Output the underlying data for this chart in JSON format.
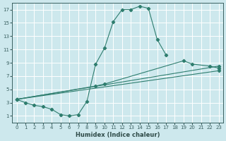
{
  "bg_color": "#cde8ed",
  "grid_color": "#ffffff",
  "line_color": "#2e7d6e",
  "xlabel": "Humidex (Indice chaleur)",
  "xlim": [
    -0.5,
    23.5
  ],
  "ylim": [
    0,
    18
  ],
  "xticks": [
    0,
    1,
    2,
    3,
    4,
    5,
    6,
    7,
    8,
    9,
    10,
    11,
    12,
    13,
    14,
    15,
    16,
    17,
    18,
    19,
    20,
    21,
    22,
    23
  ],
  "yticks": [
    1,
    3,
    5,
    7,
    9,
    11,
    13,
    15,
    17
  ],
  "line_segments": [
    {
      "x": [
        0,
        1,
        2,
        3,
        4,
        5,
        6,
        7,
        8,
        9,
        10,
        11,
        12,
        13,
        14,
        15,
        16,
        17
      ],
      "y": [
        3.5,
        3.0,
        2.6,
        2.4,
        2.0,
        1.2,
        1.0,
        1.2,
        3.2,
        8.8,
        11.2,
        15.2,
        17.0,
        17.0,
        17.5,
        17.2,
        12.5,
        10.2
      ]
    },
    {
      "x": [
        0,
        9,
        10,
        19,
        20,
        22,
        23
      ],
      "y": [
        3.5,
        5.5,
        5.8,
        9.3,
        8.8,
        8.5,
        8.2
      ]
    },
    {
      "x": [
        0,
        23
      ],
      "y": [
        3.5,
        8.5
      ]
    },
    {
      "x": [
        0,
        23
      ],
      "y": [
        3.5,
        7.8
      ]
    }
  ]
}
